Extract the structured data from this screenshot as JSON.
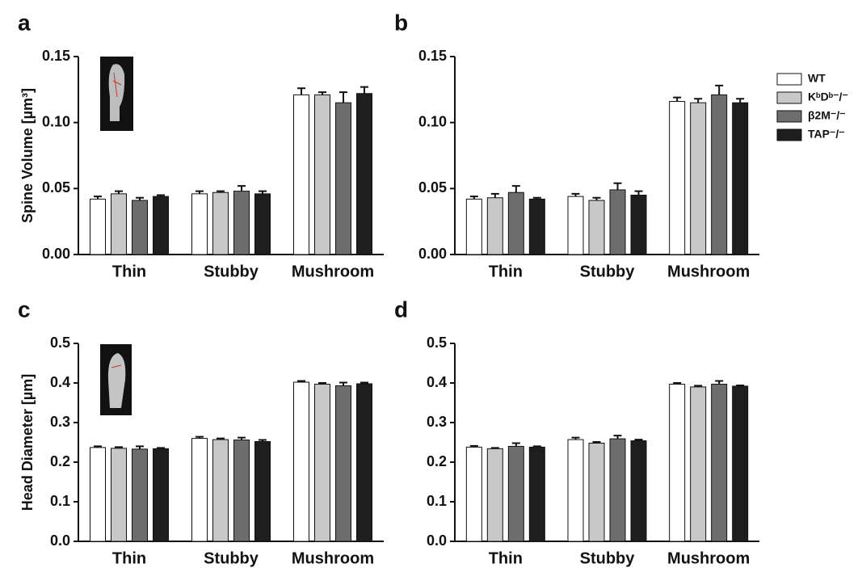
{
  "chart_data": [
    {
      "type": "bar",
      "label": "a",
      "ylabel": "Spine Volume [µm³]",
      "categories": [
        "Thin",
        "Stubby",
        "Mushroom"
      ],
      "ylim": [
        0,
        0.15
      ],
      "yticks": [
        {
          "value": 0,
          "label": "0.00"
        },
        0.05,
        {
          "value": 0.1,
          "label": "0.10"
        },
        0.15
      ],
      "series": [
        {
          "color": "#ffffff",
          "values": [
            0.042,
            0.046,
            0.121
          ],
          "errors": [
            0.002,
            0.002,
            0.005
          ]
        },
        {
          "color": "#c8c8c8",
          "values": [
            0.046,
            0.047,
            0.121
          ],
          "errors": [
            0.002,
            0.001,
            0.002
          ]
        },
        {
          "color": "#6d6d6d",
          "values": [
            0.041,
            0.048,
            0.115
          ],
          "errors": [
            0.002,
            0.004,
            0.008
          ]
        },
        {
          "color": "#1e1e1e",
          "values": [
            0.044,
            0.046,
            0.122
          ],
          "errors": [
            0.001,
            0.002,
            0.005
          ]
        }
      ]
    },
    {
      "type": "bar",
      "label": "b",
      "legend": "right",
      "categories": [
        "Thin",
        "Stubby",
        "Mushroom"
      ],
      "ylim": [
        0,
        0.15
      ],
      "yticks": [
        {
          "value": 0,
          "label": "0.00"
        },
        0.05,
        {
          "value": 0.1,
          "label": "0.10"
        },
        0.15
      ],
      "series": [
        {
          "name": "WT",
          "color": "#ffffff",
          "values": [
            0.042,
            0.044,
            0.116
          ],
          "errors": [
            0.002,
            0.002,
            0.003
          ]
        },
        {
          "name": "KᵇDᵇ⁻/⁻",
          "color": "#c8c8c8",
          "values": [
            0.043,
            0.041,
            0.115
          ],
          "errors": [
            0.003,
            0.002,
            0.003
          ]
        },
        {
          "name": "β2M⁻/⁻",
          "color": "#6d6d6d",
          "values": [
            0.047,
            0.049,
            0.121
          ],
          "errors": [
            0.005,
            0.005,
            0.007
          ]
        },
        {
          "name": "TAP⁻/⁻",
          "color": "#1e1e1e",
          "values": [
            0.042,
            0.045,
            0.115
          ],
          "errors": [
            0.001,
            0.003,
            0.003
          ]
        }
      ]
    },
    {
      "type": "bar",
      "label": "c",
      "ylabel": "Head Diameter [µm]",
      "categories": [
        "Thin",
        "Stubby",
        "Mushroom"
      ],
      "ylim": [
        0,
        0.5
      ],
      "yticks": [
        {
          "value": 0,
          "label": "0.0"
        },
        0.1,
        0.2,
        0.3,
        0.4,
        0.5
      ],
      "series": [
        {
          "color": "#ffffff",
          "values": [
            0.237,
            0.26,
            0.402
          ],
          "errors": [
            0.003,
            0.004,
            0.003
          ]
        },
        {
          "color": "#c8c8c8",
          "values": [
            0.235,
            0.257,
            0.397
          ],
          "errors": [
            0.003,
            0.003,
            0.003
          ]
        },
        {
          "color": "#6d6d6d",
          "values": [
            0.233,
            0.256,
            0.393
          ],
          "errors": [
            0.007,
            0.006,
            0.008
          ]
        },
        {
          "color": "#1e1e1e",
          "values": [
            0.234,
            0.252,
            0.398
          ],
          "errors": [
            0.002,
            0.004,
            0.003
          ]
        }
      ]
    },
    {
      "type": "bar",
      "label": "d",
      "categories": [
        "Thin",
        "Stubby",
        "Mushroom"
      ],
      "ylim": [
        0,
        0.5
      ],
      "yticks": [
        {
          "value": 0,
          "label": "0.0"
        },
        0.1,
        0.2,
        0.3,
        0.4,
        0.5
      ],
      "series": [
        {
          "color": "#ffffff",
          "values": [
            0.238,
            0.257,
            0.397
          ],
          "errors": [
            0.003,
            0.005,
            0.003
          ]
        },
        {
          "color": "#c8c8c8",
          "values": [
            0.234,
            0.248,
            0.39
          ],
          "errors": [
            0.002,
            0.003,
            0.003
          ]
        },
        {
          "color": "#6d6d6d",
          "values": [
            0.24,
            0.259,
            0.397
          ],
          "errors": [
            0.008,
            0.008,
            0.008
          ]
        },
        {
          "color": "#1e1e1e",
          "values": [
            0.238,
            0.254,
            0.392
          ],
          "errors": [
            0.002,
            0.003,
            0.002
          ]
        }
      ]
    }
  ]
}
